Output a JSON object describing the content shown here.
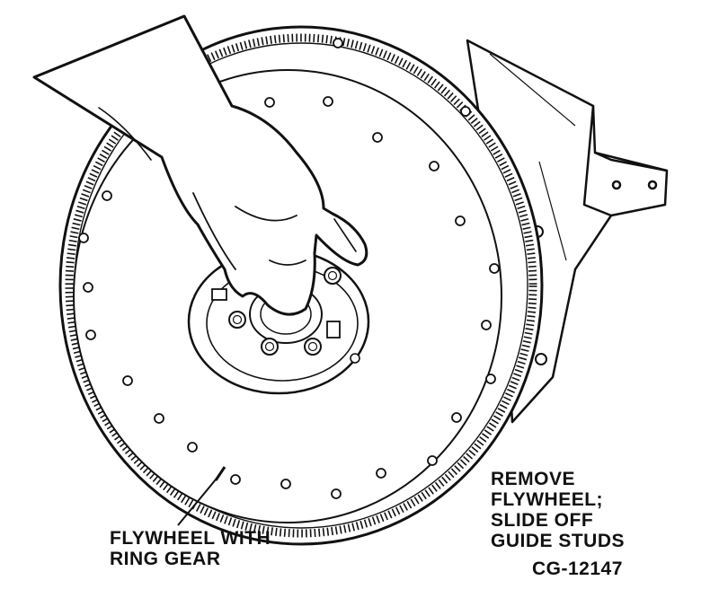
{
  "colors": {
    "ink": "#111111",
    "paper": "#ffffff"
  },
  "callouts": {
    "flywheel_line1": "FLYWHEEL WITH",
    "flywheel_line2": "RING GEAR",
    "remove_line1": "REMOVE",
    "remove_line2": "FLYWHEEL;",
    "remove_line3": "SLIDE OFF",
    "remove_line4": "GUIDE STUDS"
  },
  "figure_code": "CG-12147"
}
